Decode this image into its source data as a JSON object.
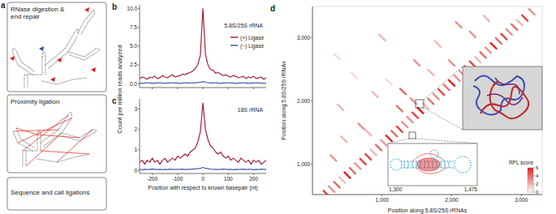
{
  "panel_a": {
    "label": "a",
    "steps": [
      "RNase digestion & end repair",
      "Proximity ligation",
      "Sequence and call ligations"
    ]
  },
  "chart_data": [
    {
      "type": "line",
      "panel": "b",
      "annotations": [
        "5.8S/25S rRNA"
      ],
      "ylabel": "Count per million reads analyzed",
      "x": [
        -250,
        -240,
        -230,
        -220,
        -210,
        -200,
        -190,
        -180,
        -170,
        -160,
        -150,
        -140,
        -130,
        -120,
        -110,
        -100,
        -90,
        -80,
        -70,
        -60,
        -50,
        -40,
        -30,
        -20,
        -10,
        0,
        10,
        20,
        30,
        40,
        50,
        60,
        70,
        80,
        90,
        100,
        110,
        120,
        130,
        140,
        150,
        160,
        170,
        180,
        190,
        200,
        210,
        220,
        230,
        240,
        250
      ],
      "series": [
        {
          "name": "(+) Ligase",
          "color": "#a51f36",
          "values": [
            0.7,
            0.9,
            0.8,
            0.6,
            0.9,
            0.8,
            1.0,
            0.7,
            0.8,
            1.1,
            0.9,
            0.8,
            1.0,
            1.2,
            0.9,
            1.0,
            1.1,
            1.3,
            1.2,
            1.4,
            1.5,
            1.7,
            2.0,
            2.6,
            3.8,
            10.0,
            3.9,
            2.5,
            1.9,
            1.8,
            1.4,
            1.5,
            1.3,
            1.1,
            1.2,
            1.0,
            0.9,
            1.1,
            1.0,
            0.8,
            0.9,
            1.0,
            0.7,
            0.9,
            0.8,
            1.0,
            0.7,
            0.8,
            0.9,
            0.6,
            0.8
          ]
        },
        {
          "name": "(−) Ligase",
          "color": "#3b5ea8",
          "values": [
            0.1,
            0.05,
            0.1,
            0.15,
            0.1,
            0.05,
            0.1,
            0.1,
            0.15,
            0.1,
            0.05,
            0.1,
            0.1,
            0.15,
            0.1,
            0.1,
            0.05,
            0.1,
            0.15,
            0.1,
            0.1,
            0.15,
            0.1,
            0.2,
            0.2,
            0.3,
            0.2,
            0.15,
            0.1,
            0.1,
            0.15,
            0.1,
            0.05,
            0.1,
            0.1,
            0.15,
            0.1,
            0.1,
            0.05,
            0.1,
            0.1,
            0.15,
            0.1,
            0.05,
            0.1,
            0.1,
            0.15,
            0.1,
            0.1,
            0.05,
            0.1
          ]
        }
      ],
      "xlim": [
        -250,
        250
      ],
      "xticks": [
        -200,
        -100,
        0,
        100,
        200
      ],
      "ylim": [
        -0.5,
        10.5
      ],
      "yticks": [
        {
          "value": 0,
          "label": "0.0"
        },
        {
          "value": 2.5,
          "label": "2.5"
        },
        {
          "value": 5,
          "label": "5.0"
        },
        {
          "value": 7.5,
          "label": "7.5"
        },
        {
          "value": 10,
          "label": "10.0"
        }
      ],
      "legend": "upper right",
      "tick_labels": "y"
    },
    {
      "type": "line",
      "panel": "c",
      "annotations": [
        "18S rRNA"
      ],
      "xlabel": "Position with respect to known basepair (nt)",
      "x": [
        -250,
        -240,
        -230,
        -220,
        -210,
        -200,
        -190,
        -180,
        -170,
        -160,
        -150,
        -140,
        -130,
        -120,
        -110,
        -100,
        -90,
        -80,
        -70,
        -60,
        -50,
        -40,
        -30,
        -20,
        -10,
        0,
        10,
        20,
        30,
        40,
        50,
        60,
        70,
        80,
        90,
        100,
        110,
        120,
        130,
        140,
        150,
        160,
        170,
        180,
        190,
        200,
        210,
        220,
        230,
        240,
        250
      ],
      "series": [
        {
          "name": "(+) Ligase",
          "color": "#a51f36",
          "values": [
            0.4,
            0.5,
            0.3,
            0.5,
            0.4,
            0.6,
            0.4,
            0.5,
            0.3,
            0.5,
            0.6,
            0.4,
            0.5,
            0.6,
            0.5,
            0.7,
            0.6,
            0.7,
            0.8,
            0.7,
            0.9,
            1.0,
            1.1,
            1.4,
            1.9,
            3.3,
            2.0,
            1.5,
            1.2,
            1.1,
            0.9,
            0.8,
            0.9,
            0.7,
            0.6,
            0.7,
            0.5,
            0.6,
            0.5,
            0.4,
            0.6,
            0.5,
            0.4,
            0.5,
            0.3,
            0.5,
            0.4,
            0.5,
            0.3,
            0.4,
            0.5
          ]
        },
        {
          "name": "(−) Ligase",
          "color": "#3b5ea8",
          "values": [
            0.05,
            0.03,
            0.05,
            0.04,
            0.05,
            0.06,
            0.05,
            0.04,
            0.05,
            0.03,
            0.05,
            0.04,
            0.06,
            0.05,
            0.04,
            0.05,
            0.05,
            0.06,
            0.04,
            0.05,
            0.05,
            0.06,
            0.07,
            0.08,
            0.1,
            0.15,
            0.1,
            0.08,
            0.06,
            0.05,
            0.05,
            0.04,
            0.05,
            0.06,
            0.05,
            0.04,
            0.05,
            0.03,
            0.05,
            0.04,
            0.05,
            0.06,
            0.04,
            0.05,
            0.05,
            0.03,
            0.05,
            0.04,
            0.06,
            0.05,
            0.04
          ]
        }
      ],
      "xlim": [
        -250,
        250
      ],
      "xticks": [
        -200,
        -100,
        0,
        100,
        200
      ],
      "ylim": [
        -0.15,
        3.5
      ],
      "yticks": [
        0,
        1,
        2,
        3
      ]
    },
    {
      "type": "heatmap",
      "panel": "d",
      "color": "#e0201b",
      "xlabel": "Position along 5.8S/25S rRNAs",
      "ylabel": "Position along 5.8S/25S rRNAs",
      "xlim": [
        0,
        3300
      ],
      "xticks": [
        {
          "value": 1000,
          "label": "1,000"
        },
        {
          "value": 2000,
          "label": "2,000"
        },
        {
          "value": 3000,
          "label": "3,000"
        }
      ],
      "ylim": [
        525,
        3490
      ],
      "yticks": [
        {
          "value": 1000,
          "label": "1,000"
        },
        {
          "value": 2000,
          "label": "2,000"
        },
        {
          "value": 3000,
          "label": "3,000"
        }
      ],
      "points": {
        "x": [
          200,
          275,
          350,
          425,
          500,
          575,
          650,
          725,
          800,
          875,
          950,
          1025,
          1100,
          1175,
          1250,
          1325,
          1400,
          1475,
          1550,
          1625,
          1700,
          1775,
          1850,
          1925,
          2000,
          2075,
          2150,
          2225,
          2300,
          2375,
          2450,
          2525,
          2600,
          2675,
          2750,
          2825,
          2900,
          2975,
          3050,
          3150,
          300,
          450,
          700,
          900,
          1250,
          1500,
          1800,
          2100,
          600,
          1000,
          400,
          1300,
          1450,
          1700,
          2300,
          2500,
          800,
          1100,
          350,
          2000
        ],
        "y": [
          540,
          610,
          680,
          755,
          830,
          900,
          975,
          1045,
          1120,
          1190,
          1265,
          1340,
          1410,
          1485,
          1555,
          1630,
          1705,
          1775,
          1850,
          1920,
          1995,
          2070,
          2140,
          2215,
          2285,
          2360,
          2435,
          2505,
          2580,
          2650,
          2725,
          2800,
          2870,
          2945,
          3015,
          3090,
          3165,
          3235,
          3310,
          3405,
          1100,
          1400,
          1600,
          2100,
          1880,
          2600,
          2900,
          3200,
          2400,
          3000,
          1900,
          2150,
          2000,
          2450,
          3050,
          3300,
          1500,
          2300,
          2700,
          2600
        ],
        "values": [
          5,
          3,
          4,
          2,
          6,
          4,
          3,
          5,
          5,
          2,
          4,
          3,
          6,
          4,
          5,
          3,
          3,
          5,
          6,
          2,
          4,
          3,
          5,
          4,
          6,
          3,
          3,
          5,
          5,
          2,
          4,
          3,
          6,
          4,
          5,
          3,
          4,
          2,
          5,
          3,
          3,
          2,
          3,
          2,
          4,
          3,
          2,
          3,
          1,
          2,
          2,
          4,
          3,
          2,
          3,
          2,
          2,
          1,
          1,
          3
        ]
      },
      "colorbar": {
        "label": "RPL score",
        "range": [
          0,
          6
        ],
        "ticks": [
          0,
          2,
          4,
          6
        ]
      },
      "annotations": [
        "1,300",
        "1,475"
      ]
    }
  ]
}
